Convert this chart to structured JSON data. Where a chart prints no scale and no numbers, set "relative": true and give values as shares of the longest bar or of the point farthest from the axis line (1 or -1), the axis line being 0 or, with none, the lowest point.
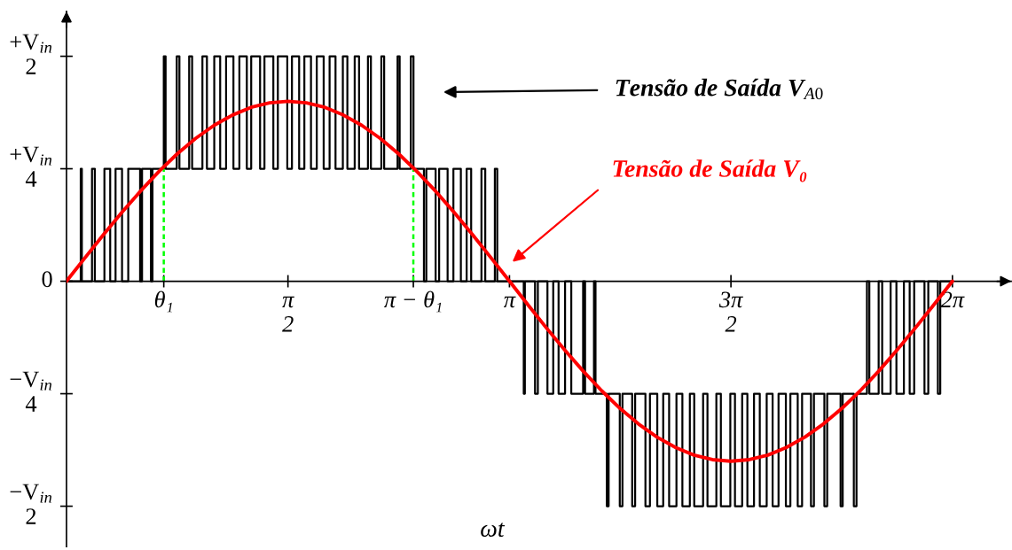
{
  "chart_data": {
    "type": "line",
    "relative": true,
    "xlabel": "ωt",
    "xlim": [
      0,
      6.7
    ],
    "xticks": [
      {
        "value": 0.69,
        "label": "θ₁"
      },
      {
        "value": 1.5708,
        "label": "π\n2"
      },
      {
        "value": 2.46,
        "label": "π − θ₁"
      },
      {
        "value": 3.1416,
        "label": "π"
      },
      {
        "value": 4.7124,
        "label": "3π\n2"
      },
      {
        "value": 6.2832,
        "label": "2π"
      }
    ],
    "annotations": [
      "+V$_{in}$\n2",
      "+V$_{in}$\n4",
      "0",
      "−V$_{in}$\n4",
      "−V$_{in}$\n2"
    ],
    "series": [
      {
        "name": "Tensão de Saída V$_{A0}$",
        "type": "step",
        "color": "#000000",
        "x": [
          0,
          0.101,
          0.109,
          0.181,
          0.201,
          0.269,
          0.31,
          0.348,
          0.394,
          0.438,
          0.522,
          0.536,
          0.599,
          0.61,
          0.69,
          0.703,
          0.782,
          0.801,
          0.87,
          0.891,
          0.964,
          0.996,
          1.048,
          1.09,
          1.132,
          1.184,
          1.226,
          1.279,
          1.31,
          1.373,
          1.404,
          1.467,
          1.499,
          1.566,
          1.599,
          1.65,
          1.687,
          1.734,
          1.775,
          1.824,
          1.866,
          1.908,
          1.96,
          1.992,
          2.044,
          2.075,
          2.138,
          2.159,
          2.233,
          2.253,
          2.348,
          2.363,
          2.442,
          2.461,
          2.535,
          2.552,
          2.618,
          2.643,
          2.703,
          2.744,
          2.797,
          2.838,
          2.87,
          2.943,
          2.97,
          3.038,
          3.055,
          3.243,
          3.251,
          3.323,
          3.343,
          3.411,
          3.452,
          3.49,
          3.536,
          3.58,
          3.664,
          3.678,
          3.741,
          3.752,
          3.832,
          3.845,
          3.924,
          3.943,
          4.012,
          4.033,
          4.106,
          4.138,
          4.19,
          4.232,
          4.274,
          4.326,
          4.368,
          4.421,
          4.452,
          4.515,
          4.546,
          4.609,
          4.641,
          4.708,
          4.741,
          4.792,
          4.829,
          4.876,
          4.917,
          4.966,
          5.008,
          5.05,
          5.102,
          5.134,
          5.186,
          5.217,
          5.28,
          5.301,
          5.375,
          5.395,
          5.49,
          5.505,
          5.584,
          5.603,
          5.677,
          5.694,
          5.76,
          5.785,
          5.845,
          5.886,
          5.939,
          5.98,
          6.012,
          6.085,
          6.112,
          6.18,
          6.197,
          6.283
        ],
        "values": [
          0,
          0.5,
          0,
          0.5,
          0,
          0.5,
          0,
          0.5,
          0,
          0.5,
          0,
          0.5,
          0,
          0.5,
          1,
          0.5,
          1,
          0.5,
          1,
          0.5,
          1,
          0.5,
          1,
          0.5,
          1,
          0.5,
          1,
          0.5,
          1,
          0.5,
          1,
          0.5,
          1,
          0.5,
          1,
          0.5,
          1,
          0.5,
          1,
          0.5,
          1,
          0.5,
          1,
          0.5,
          1,
          0.5,
          1,
          0.5,
          1,
          0.5,
          1,
          0.5,
          1,
          0.5,
          0,
          0.5,
          0,
          0.5,
          0,
          0.5,
          0,
          0.5,
          0,
          0.5,
          0,
          0.5,
          0,
          -0.5,
          0,
          -0.5,
          0,
          -0.5,
          0,
          -0.5,
          0,
          -0.5,
          0,
          -0.5,
          0,
          -0.5,
          -1,
          -0.5,
          -1,
          -0.5,
          -1,
          -0.5,
          -1,
          -0.5,
          -1,
          -0.5,
          -1,
          -0.5,
          -1,
          -0.5,
          -1,
          -0.5,
          -1,
          -0.5,
          -1,
          -0.5,
          -1,
          -0.5,
          -1,
          -0.5,
          -1,
          -0.5,
          -1,
          -0.5,
          -1,
          -0.5,
          -1,
          -0.5,
          -1,
          -0.5,
          -1,
          -0.5,
          -1,
          -0.5,
          -1,
          -0.5,
          0,
          -0.5,
          0,
          -0.5,
          0,
          -0.5,
          0,
          -0.5,
          0,
          -0.5,
          0,
          -0.5,
          0,
          0
        ]
      },
      {
        "color": "#00ff00",
        "line_style": "dashed",
        "x": [
          0.69,
          0.69
        ],
        "values": [
          0,
          0.5
        ]
      },
      {
        "color": "#00ff00",
        "line_style": "dashed",
        "x": [
          2.46,
          2.46
        ],
        "values": [
          0,
          0.5
        ]
      },
      {
        "name": "Tensão de Saída V₀",
        "color": "#ff0000",
        "x": [
          0,
          0.131,
          0.262,
          0.393,
          0.524,
          0.654,
          0.785,
          0.916,
          1.047,
          1.178,
          1.309,
          1.44,
          1.571,
          1.702,
          1.833,
          1.963,
          2.094,
          2.225,
          2.356,
          2.487,
          2.618,
          2.749,
          2.88,
          3.011,
          3.142,
          3.272,
          3.403,
          3.534,
          3.665,
          3.796,
          3.927,
          4.058,
          4.189,
          4.32,
          4.451,
          4.581,
          4.712,
          4.843,
          4.974,
          5.105,
          5.236,
          5.367,
          5.498,
          5.629,
          5.76,
          5.89,
          6.021,
          6.152,
          6.283
        ],
        "values": [
          0,
          0.104,
          0.207,
          0.306,
          0.4,
          0.487,
          0.566,
          0.635,
          0.693,
          0.739,
          0.773,
          0.793,
          0.8,
          0.793,
          0.773,
          0.739,
          0.693,
          0.635,
          0.566,
          0.487,
          0.4,
          0.306,
          0.207,
          0.104,
          0,
          -0.104,
          -0.207,
          -0.306,
          -0.4,
          -0.487,
          -0.566,
          -0.635,
          -0.693,
          -0.739,
          -0.773,
          -0.793,
          -0.8,
          -0.793,
          -0.773,
          -0.739,
          -0.693,
          -0.635,
          -0.566,
          -0.487,
          -0.4,
          -0.306,
          -0.207,
          -0.104,
          0
        ]
      }
    ]
  }
}
